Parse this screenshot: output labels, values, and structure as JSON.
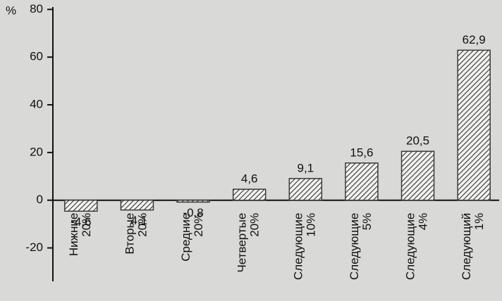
{
  "chart_data": {
    "type": "bar",
    "y_label": "%",
    "categories": [
      "Нижние 20%",
      "Вторые 20%",
      "Средние 20%",
      "Четвертые 20%",
      "Следующие 10%",
      "Следующие 5%",
      "Следующие 4%",
      "Следующий 1%"
    ],
    "values": [
      -4.6,
      -4.1,
      -0.8,
      4.6,
      9.1,
      15.6,
      20.5,
      62.9
    ],
    "value_labels": [
      "-4,6",
      "-4,1",
      "-0,8",
      "4,6",
      "9,1",
      "15,6",
      "20,5",
      "62,9"
    ],
    "color": "#3a3a3a",
    "ylim": [
      -34,
      81
    ],
    "yticks": [
      -20,
      0,
      20,
      40,
      60,
      80
    ]
  }
}
